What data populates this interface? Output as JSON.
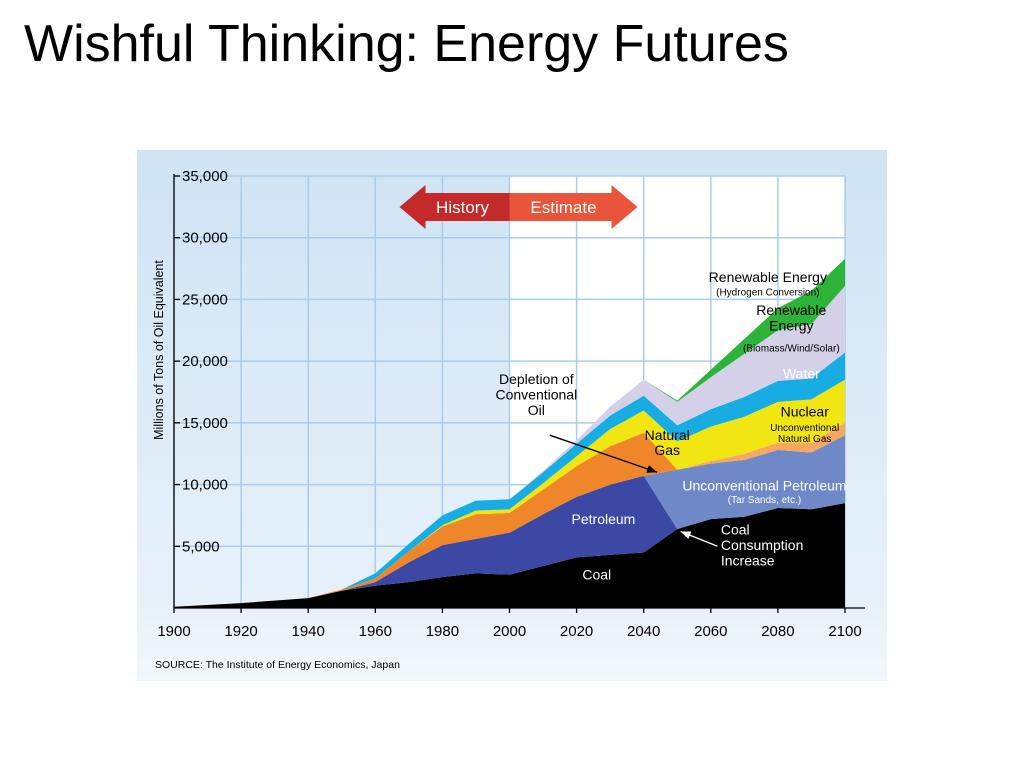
{
  "slide": {
    "title": "Wishful Thinking: Energy Futures"
  },
  "colors": {
    "Coal": "#000000",
    "Petroleum": "#3b49a4",
    "Unconventional Petroleum": "#6f88c8",
    "Natural Gas": "#f0862a",
    "Unconventional Natural Gas": "#f6a860",
    "Nuclear": "#f2e612",
    "Water": "#17ace2",
    "Renewable Energy (Biomass/Wind/Solar)": "#d3d0e8",
    "Renewable Energy (Hydrogen Conversion)": "#2db33a",
    "history_arrow": "#c42a2a",
    "estimate_arrow": "#e8553a",
    "panel_background": "#cfe3f4"
  },
  "chart_data": {
    "type": "area",
    "stacked": true,
    "title": "",
    "xlabel": "",
    "ylabel": "Millions of Tons of Oil Equivalent",
    "xlim": [
      1900,
      2100
    ],
    "ylim": [
      0,
      35000
    ],
    "grid": true,
    "x_ticks": [
      "1900",
      "1920",
      "1940",
      "1960",
      "1980",
      "2000",
      "2020",
      "2040",
      "2060",
      "2080",
      "2100"
    ],
    "y_ticks": [
      "5,000",
      "10,000",
      "15,000",
      "20,000",
      "25,000",
      "30,000",
      "35,000"
    ],
    "arrows": {
      "history": "History",
      "estimate": "Estimate",
      "split_year": 2000
    },
    "source": "SOURCE: The Institute of Energy Economics, Japan",
    "x": [
      1900,
      1920,
      1940,
      1950,
      1960,
      1970,
      1980,
      1990,
      2000,
      2010,
      2020,
      2030,
      2040,
      2050,
      2060,
      2070,
      2080,
      2090,
      2100
    ],
    "series": [
      {
        "name": "Coal",
        "values": [
          100,
          400,
          800,
          1400,
          1800,
          2100,
          2500,
          2800,
          2700,
          3400,
          4100,
          4300,
          4500,
          6400,
          7200,
          7400,
          8100,
          8000,
          8500
        ]
      },
      {
        "name": "Petroleum",
        "values": [
          0,
          0,
          0,
          0,
          300,
          1600,
          2600,
          2800,
          3400,
          4200,
          4900,
          5700,
          6200,
          0,
          0,
          0,
          0,
          0,
          0
        ]
      },
      {
        "name": "Unconventional Petroleum",
        "values": [
          0,
          0,
          0,
          0,
          0,
          0,
          0,
          0,
          0,
          0,
          0,
          0,
          0,
          4800,
          4500,
          4600,
          4700,
          4600,
          5500
        ]
      },
      {
        "name": "Natural Gas",
        "values": [
          0,
          0,
          0,
          100,
          300,
          900,
          1500,
          2000,
          1600,
          2000,
          2500,
          3100,
          3500,
          0,
          0,
          0,
          0,
          0,
          0
        ]
      },
      {
        "name": "Unconventional Natural Gas",
        "values": [
          0,
          0,
          0,
          0,
          0,
          0,
          0,
          0,
          0,
          0,
          0,
          0,
          0,
          0,
          200,
          500,
          600,
          800,
          1000
        ]
      },
      {
        "name": "Nuclear",
        "values": [
          0,
          0,
          0,
          0,
          0,
          0,
          100,
          300,
          300,
          500,
          800,
          1400,
          1800,
          2300,
          2800,
          3000,
          3300,
          3500,
          3500
        ]
      },
      {
        "name": "Water",
        "values": [
          0,
          0,
          0,
          0,
          400,
          600,
          800,
          800,
          800,
          900,
          1000,
          1100,
          1200,
          1300,
          1400,
          1600,
          1700,
          1700,
          2200
        ]
      },
      {
        "name": "Renewable Energy (Biomass/Wind/Solar)",
        "values": [
          0,
          0,
          0,
          0,
          0,
          0,
          0,
          0,
          0,
          100,
          300,
          700,
          1300,
          1900,
          2600,
          3500,
          4100,
          4400,
          5400
        ]
      },
      {
        "name": "Renewable Energy (Hydrogen Conversion)",
        "values": [
          0,
          0,
          0,
          0,
          0,
          0,
          0,
          0,
          0,
          0,
          0,
          0,
          0,
          100,
          600,
          1200,
          1800,
          2700,
          2200
        ]
      }
    ],
    "annotations": [
      {
        "id": "coal",
        "lines": [
          "Coal"
        ],
        "x": 2026,
        "y": 2300,
        "color": "#ffffff",
        "size": 14
      },
      {
        "id": "petroleum",
        "lines": [
          "Petroleum"
        ],
        "x": 2028,
        "y": 6800,
        "color": "#ffffff",
        "size": 14
      },
      {
        "id": "natgas",
        "lines": [
          "Natural",
          "Gas"
        ],
        "x": 2047,
        "y": 13000,
        "color": "#000000",
        "size": 14
      },
      {
        "id": "uncpet",
        "lines": [
          "Unconventional Petroleum"
        ],
        "x": 2076,
        "y": 9500,
        "color": "#ffffff",
        "size": 14
      },
      {
        "id": "uncpet-sub",
        "lines": [
          "(Tar Sands, etc.)"
        ],
        "x": 2076,
        "y": 8500,
        "color": "#ffffff",
        "size": 10
      },
      {
        "id": "uncgas",
        "lines": [
          "Unconventional",
          "Natural Gas"
        ],
        "x": 2088,
        "y": 13900,
        "color": "#000000",
        "size": 10
      },
      {
        "id": "nuclear",
        "lines": [
          "Nuclear"
        ],
        "x": 2088,
        "y": 15500,
        "color": "#000000",
        "size": 14
      },
      {
        "id": "water",
        "lines": [
          "Water"
        ],
        "x": 2087,
        "y": 18600,
        "color": "#ffffff",
        "size": 14
      },
      {
        "id": "ren-bio",
        "lines": [
          "Renewable",
          "Energy"
        ],
        "x": 2084,
        "y": 23100,
        "color": "#000000",
        "size": 14
      },
      {
        "id": "ren-bio-sub",
        "lines": [
          "(Biomass/Wind/Solar)"
        ],
        "x": 2084,
        "y": 20800,
        "color": "#000000",
        "size": 10
      },
      {
        "id": "ren-h2",
        "lines": [
          "Renewable Energy"
        ],
        "x": 2077,
        "y": 26400,
        "color": "#000000",
        "size": 14
      },
      {
        "id": "ren-h2-sub",
        "lines": [
          "(Hydrogen Conversion)"
        ],
        "x": 2077,
        "y": 25300,
        "color": "#000000",
        "size": 10
      },
      {
        "id": "depletion",
        "lines": [
          "Depletion of",
          "Conventional",
          "Oil"
        ],
        "x": 2008,
        "y": 16900,
        "color": "#000000",
        "size": 14
      },
      {
        "id": "coal-increase",
        "lines": [
          "Coal",
          "Consumption",
          "Increase"
        ],
        "x": 2063,
        "y": 4700,
        "color": "#ffffff",
        "size": 14,
        "anchor": "start"
      }
    ],
    "pointers": [
      {
        "from": [
          2012,
          14000
        ],
        "to": [
          2044,
          11000
        ],
        "color": "#000000"
      },
      {
        "from": [
          2062,
          5000
        ],
        "to": [
          2051,
          6200
        ],
        "color": "#ffffff"
      }
    ]
  }
}
